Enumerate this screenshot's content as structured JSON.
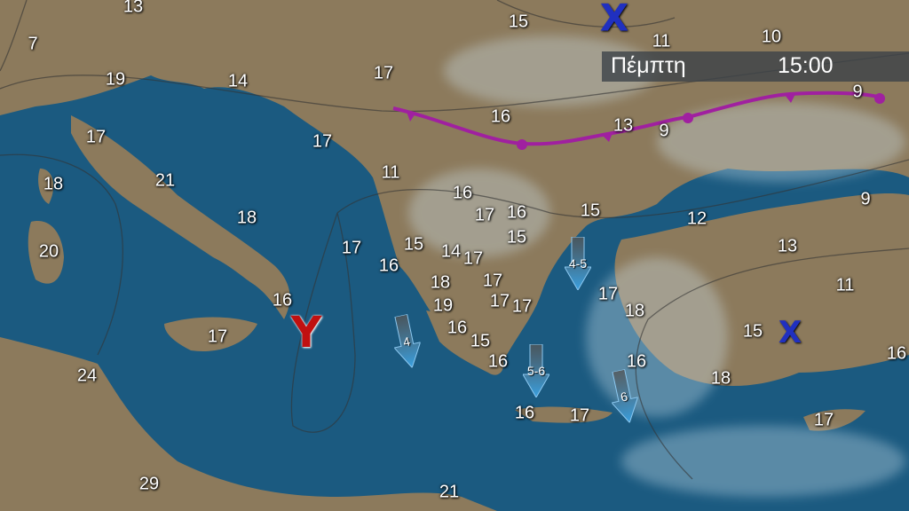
{
  "header": {
    "day": "Πέμπτη",
    "time": "15:00"
  },
  "colors": {
    "sea": "#1b5a80",
    "land": "#8c7a5c",
    "front": "#a020a0",
    "high": "#2030c0",
    "low": "#c01010",
    "arrow": "#3aa0e0"
  },
  "pressure_systems": [
    {
      "symbol": "X",
      "type": "high"
    },
    {
      "symbol": "X",
      "type": "high"
    },
    {
      "symbol": "Y",
      "type": "low"
    }
  ],
  "front": {
    "type": "occluded"
  },
  "temperatures": [
    "13",
    "7",
    "19",
    "14",
    "17",
    "15",
    "11",
    "10",
    "9",
    "17",
    "16",
    "13",
    "9",
    "17",
    "18",
    "21",
    "11",
    "16",
    "17",
    "16",
    "15",
    "12",
    "9",
    "18",
    "15",
    "17",
    "15",
    "14",
    "17",
    "20",
    "13",
    "16",
    "18",
    "17",
    "17",
    "11",
    "16",
    "19",
    "17",
    "17",
    "18",
    "15",
    "16",
    "15",
    "17",
    "16",
    "24",
    "16",
    "16",
    "18",
    "16",
    "17",
    "17",
    "29",
    "21"
  ],
  "wind_arrows": [
    {
      "beaufort": "4"
    },
    {
      "beaufort": "4-5"
    },
    {
      "beaufort": "5-6"
    },
    {
      "beaufort": "6"
    }
  ]
}
